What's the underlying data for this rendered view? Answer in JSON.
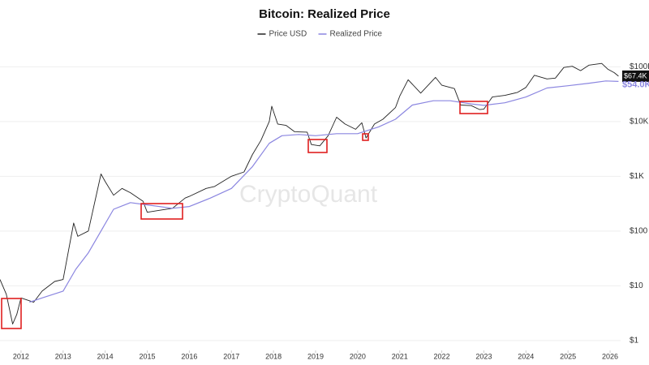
{
  "chart_data": {
    "type": "line",
    "title": "Bitcoin: Realized Price",
    "watermark": "CryptoQuant",
    "log_scale": true,
    "grid": true,
    "xlim": [
      2011.5,
      2026.25
    ],
    "xticks": [
      2012,
      2013,
      2014,
      2015,
      2016,
      2017,
      2018,
      2019,
      2020,
      2021,
      2022,
      2023,
      2024,
      2025,
      2026
    ],
    "ylim": [
      0.66,
      200000
    ],
    "yticks": [
      {
        "value": 1,
        "label": "$1"
      },
      {
        "value": 10,
        "label": "$10"
      },
      {
        "value": 100,
        "label": "$100"
      },
      {
        "value": 1000,
        "label": "$1K"
      },
      {
        "value": 10000,
        "label": "$10K"
      },
      {
        "value": 100000,
        "label": "$100K"
      }
    ],
    "series": [
      {
        "name": "Price USD",
        "color": "#222222",
        "end_label": "$67.4K",
        "x": [
          2011.5,
          2011.65,
          2011.8,
          2011.9,
          2012.0,
          2012.3,
          2012.5,
          2012.8,
          2013.0,
          2013.25,
          2013.35,
          2013.6,
          2013.9,
          2014.0,
          2014.2,
          2014.4,
          2014.6,
          2014.9,
          2015.0,
          2015.3,
          2015.6,
          2015.9,
          2016.0,
          2016.4,
          2016.6,
          2016.9,
          2017.0,
          2017.3,
          2017.5,
          2017.7,
          2017.9,
          2017.96,
          2018.1,
          2018.3,
          2018.5,
          2018.8,
          2018.9,
          2019.1,
          2019.3,
          2019.5,
          2019.7,
          2019.95,
          2020.1,
          2020.2,
          2020.4,
          2020.6,
          2020.9,
          2021.0,
          2021.2,
          2021.5,
          2021.85,
          2022.0,
          2022.3,
          2022.45,
          2022.7,
          2022.9,
          2023.0,
          2023.2,
          2023.5,
          2023.8,
          2024.0,
          2024.2,
          2024.5,
          2024.7,
          2024.9,
          2025.1,
          2025.3,
          2025.5,
          2025.8,
          2025.95,
          2026.1,
          2026.2
        ],
        "values": [
          13,
          7,
          2,
          3,
          6,
          5,
          8,
          12,
          13,
          140,
          80,
          100,
          1100,
          800,
          450,
          600,
          500,
          350,
          220,
          240,
          260,
          400,
          430,
          600,
          650,
          900,
          1000,
          1200,
          2500,
          4500,
          10000,
          19000,
          9000,
          8500,
          6500,
          6400,
          3800,
          3600,
          5500,
          12000,
          9000,
          7200,
          9500,
          5000,
          9000,
          11000,
          18000,
          29000,
          58000,
          33000,
          64000,
          46000,
          40000,
          20000,
          19500,
          16500,
          16800,
          28000,
          30000,
          34000,
          42000,
          70000,
          60000,
          62000,
          97000,
          102000,
          85000,
          107000,
          115000,
          90000,
          78000,
          67400
        ]
      },
      {
        "name": "Realized Price",
        "color": "#8b86e0",
        "end_label": "$54.0K",
        "x": [
          2012.2,
          2012.5,
          2013.0,
          2013.3,
          2013.6,
          2013.9,
          2014.2,
          2014.6,
          2015.0,
          2015.6,
          2016.0,
          2016.5,
          2017.0,
          2017.5,
          2017.9,
          2018.2,
          2018.6,
          2019.0,
          2019.5,
          2020.0,
          2020.5,
          2020.9,
          2021.3,
          2021.8,
          2022.2,
          2022.7,
          2023.0,
          2023.5,
          2024.0,
          2024.5,
          2025.0,
          2025.5,
          2025.9,
          2026.2
        ],
        "values": [
          5,
          6,
          8,
          20,
          40,
          100,
          250,
          330,
          300,
          260,
          280,
          400,
          600,
          1500,
          4000,
          5500,
          5800,
          5500,
          6000,
          6000,
          8000,
          11000,
          20000,
          24000,
          24000,
          21000,
          19700,
          22000,
          28000,
          41000,
          45000,
          50000,
          55000,
          54000
        ]
      }
    ]
  }
}
